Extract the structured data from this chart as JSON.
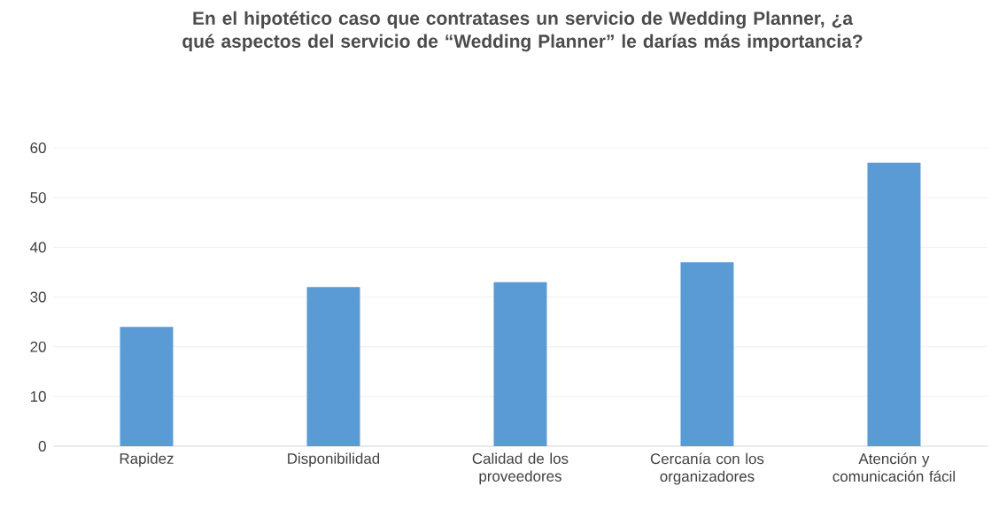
{
  "chart_data": {
    "type": "bar",
    "title": "En el hipotético caso que contratases un servicio de Wedding Planner, ¿a qué aspectos del servicio de “Wedding Planner” le darías más importancia?",
    "categories": [
      "Rapidez",
      "Disponibilidad",
      "Calidad de los proveedores",
      "Cercanía con los organizadores",
      "Atención y comunicación fácil"
    ],
    "values": [
      24,
      32,
      33,
      37,
      57
    ],
    "color": "#5b9bd5",
    "ylim": [
      0,
      60
    ],
    "yticks": [
      0,
      10,
      20,
      30,
      40,
      50,
      60
    ],
    "grid": "y"
  }
}
